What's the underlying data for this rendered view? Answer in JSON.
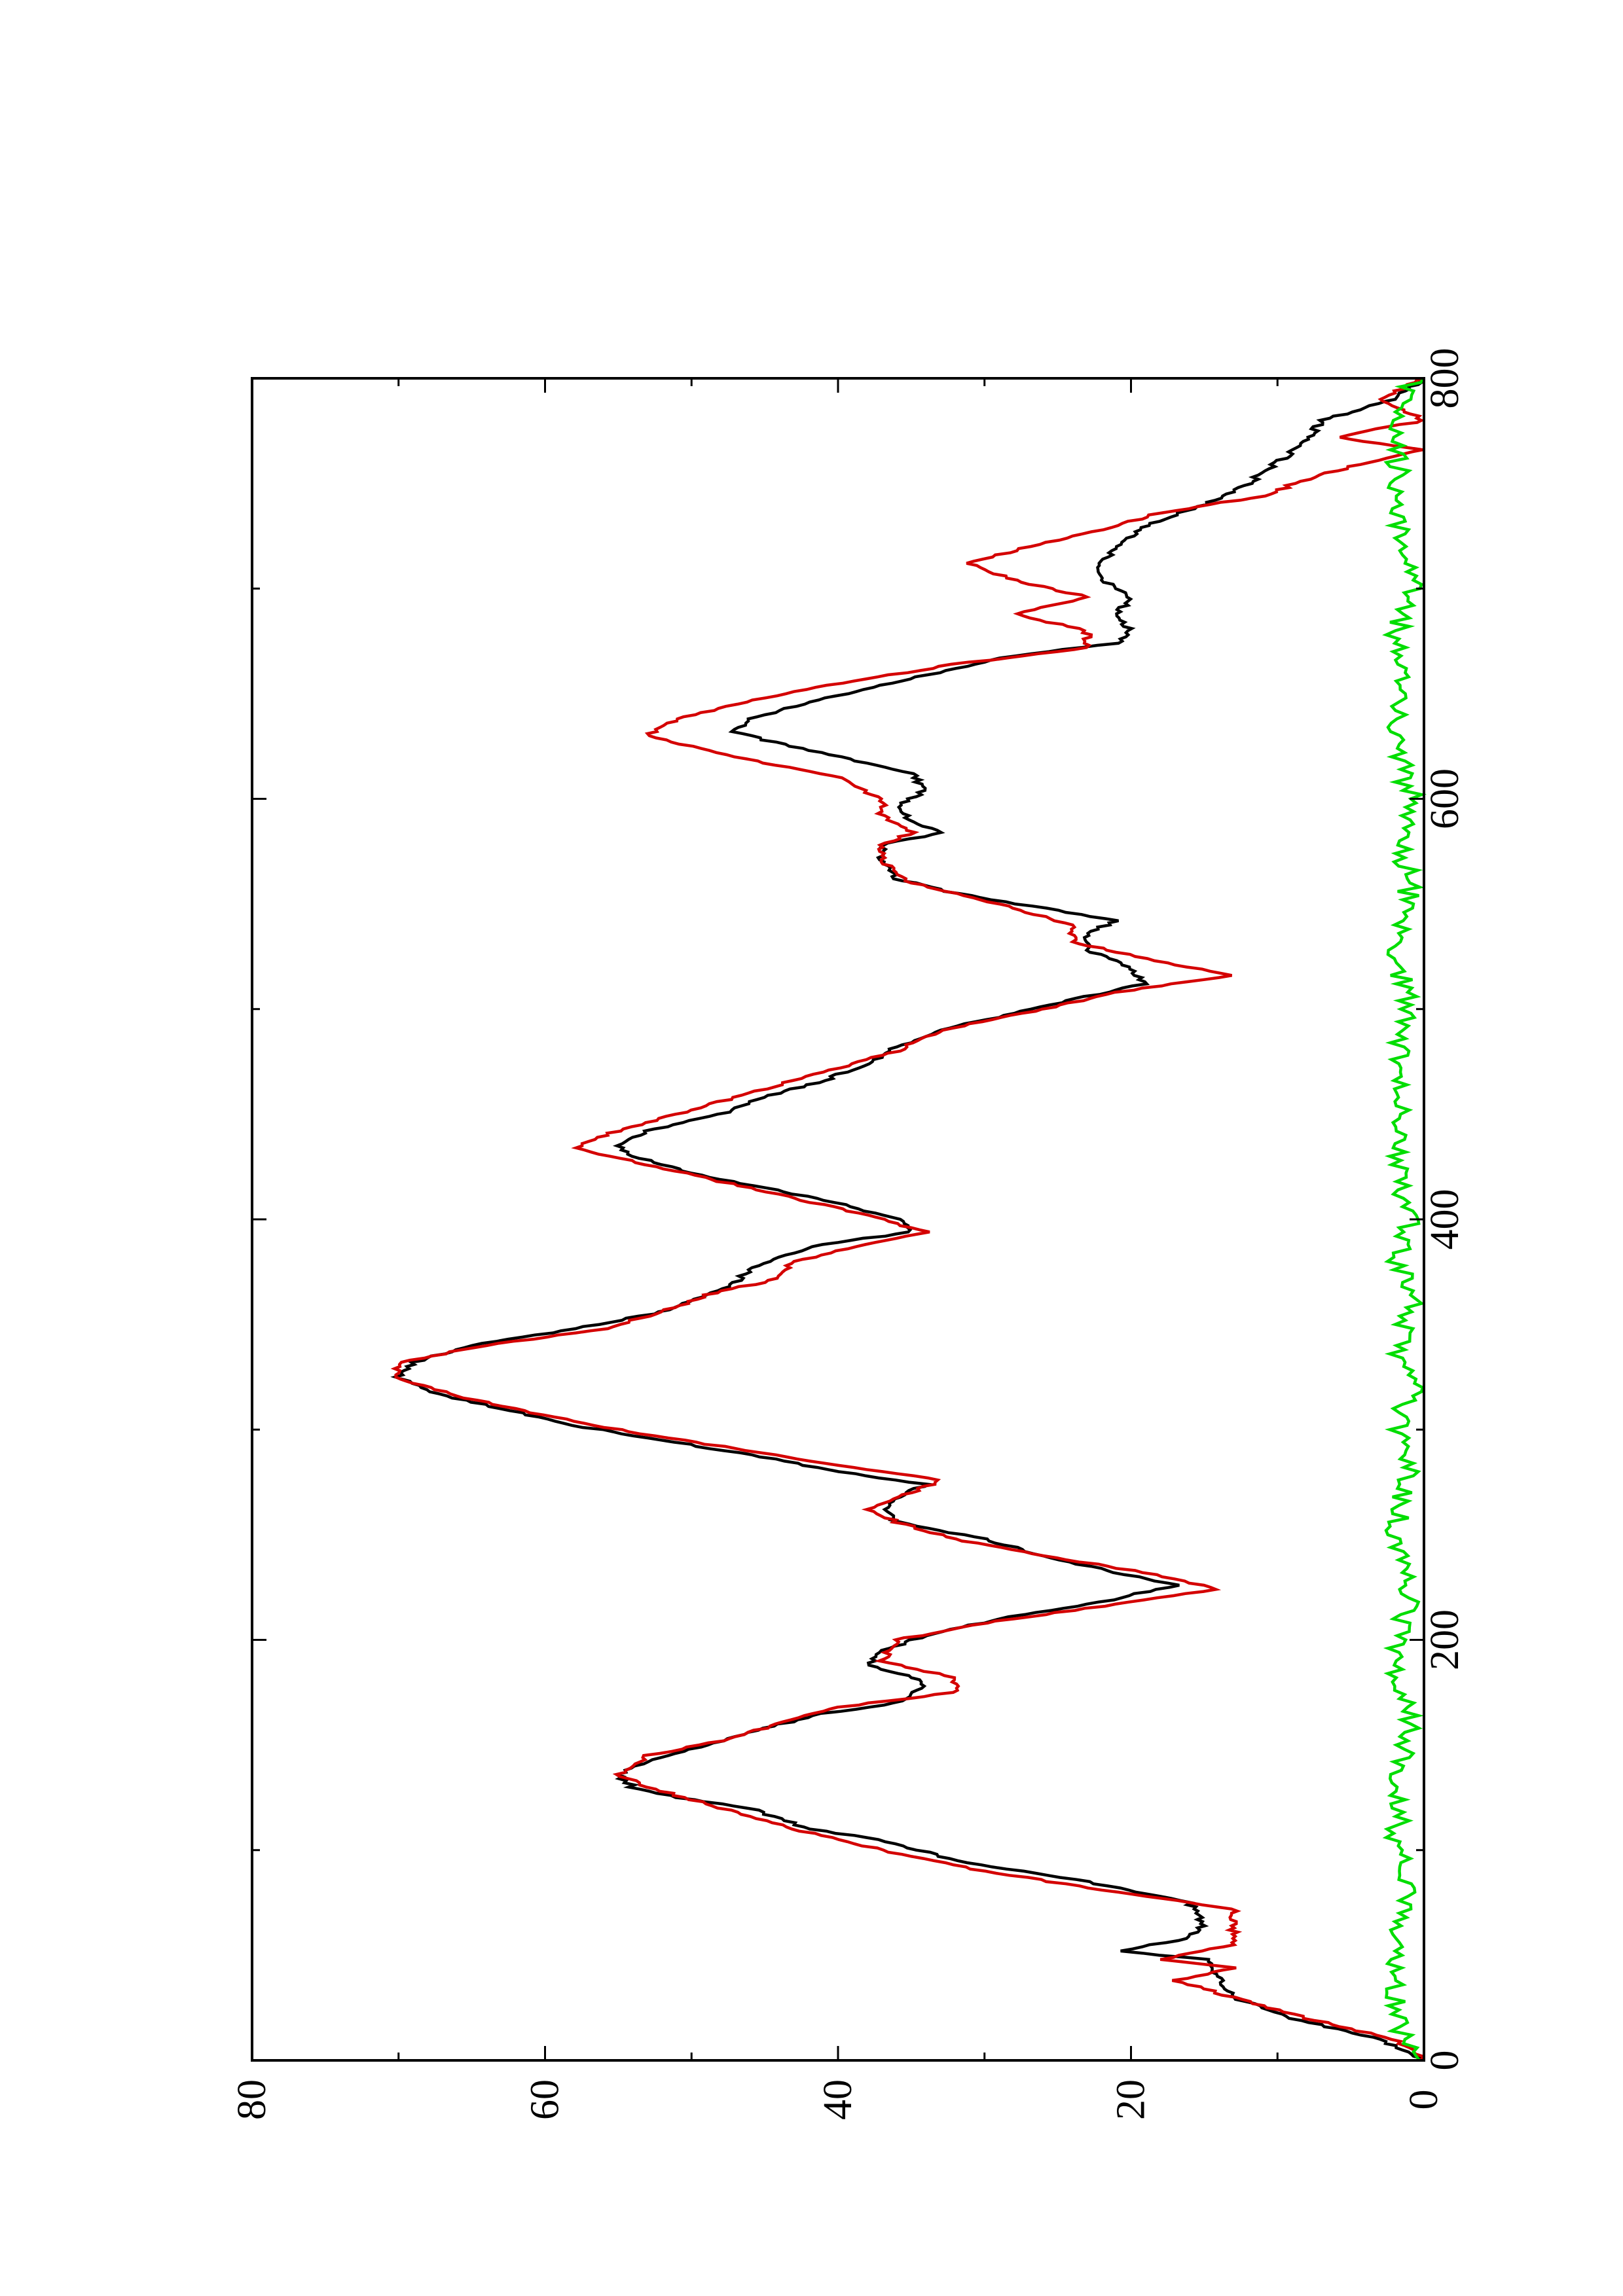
{
  "chart_data": {
    "type": "line",
    "orientation": "rotated-90-ccw",
    "title": "",
    "xlabel": "",
    "ylabel": "",
    "xlim": [
      0,
      800
    ],
    "ylim": [
      0,
      80
    ],
    "x_ticks": [
      0,
      200,
      400,
      600,
      800
    ],
    "x_minor_ticks": [
      100,
      300,
      500,
      700
    ],
    "y_ticks": [
      0,
      20,
      40,
      60,
      80
    ],
    "y_minor_ticks": [
      10,
      30,
      50,
      70
    ],
    "grid": false,
    "legend": "none",
    "series": [
      {
        "color": "#000000",
        "points": [
          [
            0,
            0
          ],
          [
            10,
            3
          ],
          [
            20,
            9
          ],
          [
            30,
            13
          ],
          [
            40,
            14
          ],
          [
            48,
            15
          ],
          [
            52,
            21
          ],
          [
            58,
            16
          ],
          [
            65,
            15
          ],
          [
            75,
            16
          ],
          [
            85,
            23
          ],
          [
            95,
            32
          ],
          [
            105,
            37
          ],
          [
            110,
            42
          ],
          [
            120,
            46
          ],
          [
            125,
            51
          ],
          [
            130,
            54
          ],
          [
            136,
            55
          ],
          [
            142,
            53
          ],
          [
            150,
            49
          ],
          [
            158,
            45
          ],
          [
            165,
            41
          ],
          [
            170,
            36
          ],
          [
            178,
            34
          ],
          [
            183,
            35
          ],
          [
            188,
            38
          ],
          [
            195,
            37
          ],
          [
            202,
            34
          ],
          [
            210,
            29
          ],
          [
            218,
            22
          ],
          [
            226,
            17
          ],
          [
            232,
            21
          ],
          [
            240,
            26
          ],
          [
            248,
            30
          ],
          [
            256,
            36
          ],
          [
            262,
            37
          ],
          [
            268,
            36
          ],
          [
            274,
            34
          ],
          [
            280,
            40
          ],
          [
            288,
            46
          ],
          [
            295,
            52
          ],
          [
            302,
            58
          ],
          [
            310,
            63
          ],
          [
            318,
            68
          ],
          [
            325,
            70
          ],
          [
            332,
            69
          ],
          [
            340,
            65
          ],
          [
            348,
            58
          ],
          [
            356,
            52
          ],
          [
            364,
            49
          ],
          [
            370,
            47
          ],
          [
            376,
            46
          ],
          [
            382,
            44
          ],
          [
            388,
            41
          ],
          [
            394,
            35
          ],
          [
            400,
            36
          ],
          [
            408,
            40
          ],
          [
            415,
            45
          ],
          [
            422,
            50
          ],
          [
            430,
            54
          ],
          [
            436,
            55
          ],
          [
            442,
            53
          ],
          [
            450,
            48
          ],
          [
            458,
            45
          ],
          [
            466,
            41
          ],
          [
            474,
            38
          ],
          [
            482,
            36
          ],
          [
            490,
            33
          ],
          [
            498,
            28
          ],
          [
            506,
            23
          ],
          [
            512,
            19
          ],
          [
            520,
            20
          ],
          [
            528,
            23
          ],
          [
            536,
            23
          ],
          [
            542,
            21
          ],
          [
            548,
            26
          ],
          [
            555,
            32
          ],
          [
            562,
            36
          ],
          [
            570,
            37
          ],
          [
            578,
            37
          ],
          [
            584,
            33
          ],
          [
            590,
            35
          ],
          [
            596,
            36
          ],
          [
            604,
            34
          ],
          [
            612,
            35
          ],
          [
            620,
            40
          ],
          [
            628,
            45
          ],
          [
            632,
            47
          ],
          [
            638,
            46
          ],
          [
            646,
            42
          ],
          [
            654,
            37
          ],
          [
            662,
            32
          ],
          [
            668,
            28
          ],
          [
            674,
            21
          ],
          [
            680,
            20
          ],
          [
            688,
            21
          ],
          [
            696,
            20
          ],
          [
            704,
            22
          ],
          [
            712,
            22
          ],
          [
            720,
            21
          ],
          [
            730,
            19
          ],
          [
            740,
            15
          ],
          [
            750,
            12
          ],
          [
            760,
            10
          ],
          [
            770,
            8
          ],
          [
            780,
            7
          ],
          [
            790,
            2
          ],
          [
            800,
            0
          ]
        ]
      },
      {
        "color": "#d40000",
        "points": [
          [
            0,
            0
          ],
          [
            10,
            2
          ],
          [
            20,
            8
          ],
          [
            30,
            13
          ],
          [
            38,
            17
          ],
          [
            44,
            13
          ],
          [
            48,
            18
          ],
          [
            55,
            13
          ],
          [
            64,
            13
          ],
          [
            72,
            13
          ],
          [
            80,
            21
          ],
          [
            90,
            30
          ],
          [
            100,
            37
          ],
          [
            110,
            43
          ],
          [
            120,
            48
          ],
          [
            130,
            53
          ],
          [
            136,
            55
          ],
          [
            145,
            53
          ],
          [
            152,
            48
          ],
          [
            160,
            44
          ],
          [
            168,
            40
          ],
          [
            175,
            32
          ],
          [
            182,
            32
          ],
          [
            190,
            37
          ],
          [
            200,
            36
          ],
          [
            208,
            30
          ],
          [
            216,
            22
          ],
          [
            224,
            14
          ],
          [
            232,
            19
          ],
          [
            240,
            26
          ],
          [
            248,
            32
          ],
          [
            256,
            36
          ],
          [
            262,
            38
          ],
          [
            270,
            35
          ],
          [
            276,
            33
          ],
          [
            284,
            41
          ],
          [
            292,
            48
          ],
          [
            300,
            55
          ],
          [
            308,
            61
          ],
          [
            316,
            66
          ],
          [
            324,
            70
          ],
          [
            332,
            70
          ],
          [
            340,
            64
          ],
          [
            348,
            56
          ],
          [
            356,
            52
          ],
          [
            364,
            49
          ],
          [
            372,
            44
          ],
          [
            380,
            43
          ],
          [
            388,
            38
          ],
          [
            394,
            34
          ],
          [
            402,
            38
          ],
          [
            410,
            43
          ],
          [
            418,
            48
          ],
          [
            426,
            53
          ],
          [
            434,
            58
          ],
          [
            440,
            56
          ],
          [
            448,
            52
          ],
          [
            456,
            48
          ],
          [
            464,
            44
          ],
          [
            472,
            40
          ],
          [
            480,
            36
          ],
          [
            490,
            33
          ],
          [
            500,
            26
          ],
          [
            508,
            21
          ],
          [
            516,
            13
          ],
          [
            524,
            19
          ],
          [
            532,
            24
          ],
          [
            540,
            24
          ],
          [
            550,
            29
          ],
          [
            560,
            35
          ],
          [
            570,
            37
          ],
          [
            578,
            37
          ],
          [
            584,
            35
          ],
          [
            592,
            37
          ],
          [
            600,
            37
          ],
          [
            610,
            40
          ],
          [
            620,
            47
          ],
          [
            630,
            53
          ],
          [
            638,
            51
          ],
          [
            648,
            45
          ],
          [
            656,
            39
          ],
          [
            664,
            32
          ],
          [
            672,
            23
          ],
          [
            680,
            23
          ],
          [
            688,
            28
          ],
          [
            696,
            23
          ],
          [
            704,
            28
          ],
          [
            712,
            31
          ],
          [
            720,
            27
          ],
          [
            728,
            22
          ],
          [
            736,
            18
          ],
          [
            744,
            11
          ],
          [
            752,
            8
          ],
          [
            760,
            4
          ],
          [
            766,
            0
          ],
          [
            772,
            6
          ],
          [
            780,
            0
          ],
          [
            790,
            3
          ],
          [
            800,
            0
          ]
        ]
      },
      {
        "color": "#00dd00",
        "noise_amplitude": 1.6,
        "points": [
          [
            0,
            0
          ],
          [
            20,
            1
          ],
          [
            40,
            1
          ],
          [
            60,
            1
          ],
          [
            80,
            0
          ],
          [
            100,
            1
          ],
          [
            120,
            1
          ],
          [
            140,
            1
          ],
          [
            160,
            0
          ],
          [
            180,
            1
          ],
          [
            200,
            1
          ],
          [
            220,
            0
          ],
          [
            240,
            1
          ],
          [
            260,
            1
          ],
          [
            280,
            0
          ],
          [
            300,
            1
          ],
          [
            320,
            0
          ],
          [
            340,
            1
          ],
          [
            360,
            0
          ],
          [
            380,
            1
          ],
          [
            400,
            0
          ],
          [
            420,
            1
          ],
          [
            440,
            1
          ],
          [
            460,
            1
          ],
          [
            480,
            1
          ],
          [
            500,
            0
          ],
          [
            520,
            1
          ],
          [
            540,
            1
          ],
          [
            560,
            0
          ],
          [
            580,
            1
          ],
          [
            600,
            0
          ],
          [
            620,
            1
          ],
          [
            640,
            1
          ],
          [
            660,
            1
          ],
          [
            680,
            1
          ],
          [
            700,
            0
          ],
          [
            720,
            1
          ],
          [
            740,
            1
          ],
          [
            760,
            1
          ],
          [
            780,
            1
          ],
          [
            800,
            0
          ]
        ]
      }
    ]
  }
}
